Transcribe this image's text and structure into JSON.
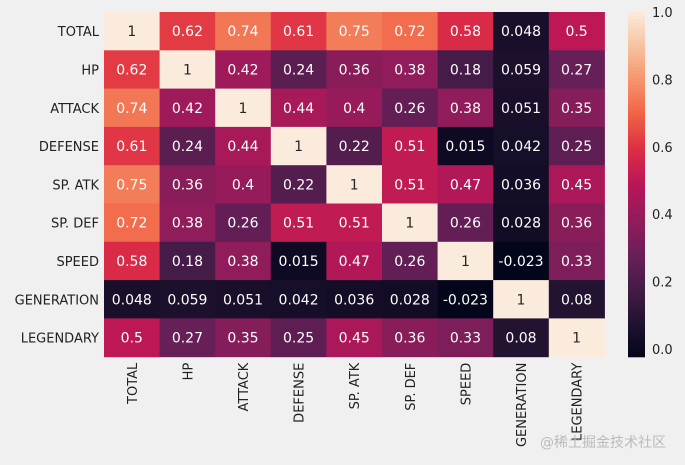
{
  "chart_data": {
    "type": "heatmap",
    "title": "",
    "row_labels": [
      "TOTAL",
      "HP",
      "ATTACK",
      "DEFENSE",
      "SP. ATK",
      "SP. DEF",
      "SPEED",
      "GENERATION",
      "LEGENDARY"
    ],
    "col_labels": [
      "TOTAL",
      "HP",
      "ATTACK",
      "DEFENSE",
      "SP. ATK",
      "SP. DEF",
      "SPEED",
      "GENERATION",
      "LEGENDARY"
    ],
    "values": [
      [
        1,
        0.62,
        0.74,
        0.61,
        0.75,
        0.72,
        0.58,
        0.048,
        0.5
      ],
      [
        0.62,
        1,
        0.42,
        0.24,
        0.36,
        0.38,
        0.18,
        0.059,
        0.27
      ],
      [
        0.74,
        0.42,
        1,
        0.44,
        0.4,
        0.26,
        0.38,
        0.051,
        0.35
      ],
      [
        0.61,
        0.24,
        0.44,
        1,
        0.22,
        0.51,
        0.015,
        0.042,
        0.25
      ],
      [
        0.75,
        0.36,
        0.4,
        0.22,
        1,
        0.51,
        0.47,
        0.036,
        0.45
      ],
      [
        0.72,
        0.38,
        0.26,
        0.51,
        0.51,
        1,
        0.26,
        0.028,
        0.36
      ],
      [
        0.58,
        0.18,
        0.38,
        0.015,
        0.47,
        0.26,
        1,
        -0.023,
        0.33
      ],
      [
        0.048,
        0.059,
        0.051,
        0.042,
        0.036,
        0.028,
        -0.023,
        1,
        0.08
      ],
      [
        0.5,
        0.27,
        0.35,
        0.25,
        0.45,
        0.36,
        0.33,
        0.08,
        1
      ]
    ],
    "annotated": true,
    "colormap": "rocket",
    "vmin": -0.023,
    "vmax": 1,
    "colorbar_ticks": [
      "0.0",
      "0.2",
      "0.4",
      "0.6",
      "0.8",
      "1.0"
    ],
    "background": "#f0f0f0"
  },
  "watermark": "@稀土掘金技术社区"
}
